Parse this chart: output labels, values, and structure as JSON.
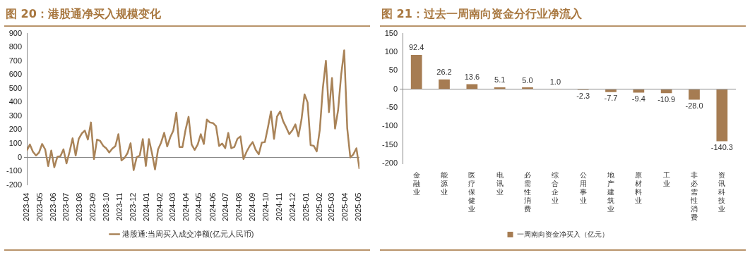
{
  "chart_data": [
    {
      "type": "line",
      "title": "图 20：港股通净买入规模变化",
      "x": [
        "2023-04-01",
        "2023-04-08",
        "2023-04-15",
        "2023-04-22",
        "2023-04-29",
        "2023-05-06",
        "2023-05-13",
        "2023-05-20",
        "2023-05-27",
        "2023-06-03",
        "2023-06-10",
        "2023-06-17",
        "2023-06-24",
        "2023-07-01",
        "2023-07-08",
        "2023-07-15",
        "2023-07-22",
        "2023-07-29",
        "2023-08-05",
        "2023-08-12",
        "2023-08-19",
        "2023-08-26",
        "2023-09-02",
        "2023-09-09",
        "2023-09-16",
        "2023-09-23",
        "2023-09-30",
        "2023-10-07",
        "2023-10-14",
        "2023-10-21",
        "2023-10-28",
        "2023-11-04",
        "2023-11-11",
        "2023-11-18",
        "2023-11-25",
        "2023-12-02",
        "2023-12-09",
        "2023-12-16",
        "2023-12-23",
        "2023-12-30",
        "2024-01-06",
        "2024-01-13",
        "2024-01-20",
        "2024-01-27",
        "2024-02-03",
        "2024-02-10",
        "2024-02-17",
        "2024-02-24",
        "2024-03-02",
        "2024-03-09",
        "2024-03-16",
        "2024-03-23",
        "2024-03-30",
        "2024-04-06",
        "2024-04-13",
        "2024-04-20",
        "2024-04-27",
        "2024-05-04",
        "2024-05-11",
        "2024-05-18",
        "2024-05-25",
        "2024-06-01",
        "2024-06-08",
        "2024-06-15",
        "2024-06-22",
        "2024-06-29",
        "2024-07-06",
        "2024-07-13",
        "2024-07-20",
        "2024-07-27",
        "2024-08-03",
        "2024-08-10",
        "2024-08-17",
        "2024-08-24",
        "2024-08-31",
        "2024-09-07",
        "2024-09-14",
        "2024-09-21",
        "2024-09-28",
        "2024-10-05",
        "2024-10-12",
        "2024-10-19",
        "2024-10-26",
        "2024-11-02",
        "2024-11-09",
        "2024-11-16",
        "2024-11-23",
        "2024-11-30",
        "2024-12-07",
        "2024-12-14",
        "2024-12-21",
        "2024-12-28",
        "2025-01-04",
        "2025-01-11",
        "2025-01-18",
        "2025-01-25",
        "2025-02-01",
        "2025-02-08",
        "2025-02-15",
        "2025-02-22",
        "2025-03-01",
        "2025-03-08",
        "2025-03-15",
        "2025-03-22",
        "2025-03-29",
        "2025-04-05",
        "2025-04-12",
        "2025-04-19",
        "2025-04-26",
        "2025-05-03"
      ],
      "series": [
        {
          "name": "港股通:当周买入成交净额(亿元人民币)",
          "color": "#a98358",
          "values": [
            50,
            94,
            41,
            14,
            36,
            98,
            59,
            -62,
            50,
            -71,
            5,
            9,
            59,
            -43,
            41,
            139,
            14,
            135,
            174,
            195,
            130,
            254,
            -12,
            130,
            121,
            85,
            67,
            36,
            64,
            82,
            169,
            -21,
            -4,
            32,
            103,
            -92,
            2,
            14,
            133,
            -62,
            133,
            32,
            -87,
            59,
            108,
            179,
            80,
            147,
            195,
            325,
            76,
            76,
            200,
            295,
            94,
            55,
            94,
            169,
            98,
            275,
            254,
            250,
            227,
            83,
            101,
            67,
            178,
            67,
            76,
            135,
            153,
            -12,
            41,
            82,
            112,
            55,
            23,
            108,
            112,
            218,
            334,
            135,
            298,
            334,
            263,
            218,
            169,
            197,
            240,
            153,
            275,
            458,
            400,
            89,
            85,
            44,
            200,
            503,
            702,
            329,
            577,
            210,
            343,
            600,
            778,
            210,
            0,
            23,
            67,
            -83
          ]
        }
      ],
      "xlim": [
        "2023-04-01",
        "2025-05-03"
      ],
      "xticks": [
        "2023-04",
        "2023-05",
        "2023-06",
        "2023-07",
        "2023-08",
        "2023-09",
        "2023-10",
        "2023-11",
        "2023-12",
        "2024-01",
        "2024-02",
        "2024-03",
        "2024-04",
        "2024-05",
        "2024-06",
        "2024-07",
        "2024-08",
        "2024-09",
        "2024-10",
        "2024-11",
        "2024-12",
        "2025-01",
        "2025-02",
        "2025-03",
        "2025-04",
        "2025-05"
      ],
      "ylim": [
        -200,
        900
      ],
      "yticks": [
        -200,
        -100,
        0,
        100,
        200,
        300,
        400,
        500,
        600,
        700,
        800,
        900
      ],
      "marker": "none",
      "legend": "bottom"
    },
    {
      "type": "bar",
      "title": "图 21：过去一周南向资金分行业净流入",
      "categories": [
        "金融业",
        "能源业",
        "医疗保健业",
        "电讯业",
        "必需性消费",
        "综合企业",
        "公用事业",
        "地产建筑业",
        "原材料业",
        "工业",
        "非必需性消费",
        "资讯科技业"
      ],
      "series": [
        {
          "name": "一周南向资金净买入（亿元）",
          "color": "#a67c52",
          "values": [
            92.4,
            26.2,
            13.6,
            5.1,
            5.0,
            1.0,
            -2.3,
            -7.7,
            -9.4,
            -10.9,
            -28.0,
            -140.3
          ],
          "value_labels": [
            "92.4",
            "26.2",
            "13.6",
            "5.1",
            "5.0",
            "1.0",
            "-2.3",
            "-7.7",
            "-9.4",
            "-10.9",
            "-28.0",
            "-140.3"
          ]
        }
      ],
      "ylim": [
        -200,
        150
      ],
      "yticks": [
        -200,
        -150,
        -100,
        -50,
        0,
        50,
        100,
        150
      ],
      "legend": "bottom"
    }
  ]
}
